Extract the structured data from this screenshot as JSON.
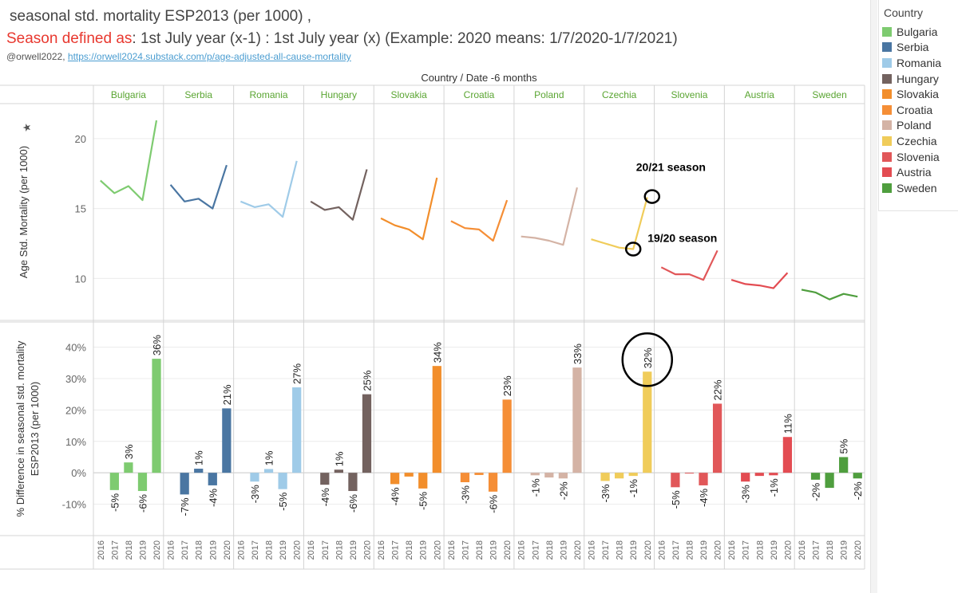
{
  "header": {
    "title_line1": "seasonal std. mortality ESP2013  (per 1000) ,",
    "title_line2_red": "Season defined as",
    "title_line2_rest": ": 1st July year (x-1) : 1st July  year (x) (Example: 2020 means: 1/7/2020-1/7/2021)",
    "handle": "@orwell2022,",
    "link": "https://orwell2024.substack.com/p/age-adjusted-all-cause-mortality"
  },
  "legend": {
    "title": "Country",
    "items": [
      {
        "label": "Bulgaria",
        "color": "#7ecb70"
      },
      {
        "label": "Serbia",
        "color": "#4a76a2"
      },
      {
        "label": "Romania",
        "color": "#9fcbe8"
      },
      {
        "label": "Hungary",
        "color": "#73625f"
      },
      {
        "label": "Slovakia",
        "color": "#f28e2b"
      },
      {
        "label": "Croatia",
        "color": "#f58e36"
      },
      {
        "label": "Poland",
        "color": "#d4b3a5"
      },
      {
        "label": "Czechia",
        "color": "#f0cc5a"
      },
      {
        "label": "Slovenia",
        "color": "#e15759"
      },
      {
        "label": "Austria",
        "color": "#e34c52"
      },
      {
        "label": "Sweden",
        "color": "#4f9e3e"
      }
    ]
  },
  "chart_data": {
    "type": "line",
    "column_header": "Country  /  Date -6 months",
    "countries": [
      "Bulgaria",
      "Serbia",
      "Romania",
      "Hungary",
      "Slovakia",
      "Croatia",
      "Poland",
      "Czechia",
      "Slovenia",
      "Austria",
      "Sweden"
    ],
    "colors": [
      "#7ecb70",
      "#4a76a2",
      "#9fcbe8",
      "#73625f",
      "#f28e2b",
      "#f58e36",
      "#d4b3a5",
      "#f0cc5a",
      "#e15759",
      "#e34c52",
      "#4f9e3e"
    ],
    "years": [
      "2016",
      "2017",
      "2018",
      "2019",
      "2020"
    ],
    "top_panel": {
      "ylabel": "Age Std. Mortality (per 1000)",
      "yticks": [
        10,
        15,
        20
      ],
      "ylim": [
        7,
        22.5
      ],
      "series": [
        {
          "name": "Bulgaria",
          "values": [
            17.0,
            16.1,
            16.6,
            15.6,
            21.3
          ]
        },
        {
          "name": "Serbia",
          "values": [
            16.7,
            15.5,
            15.7,
            15.0,
            18.1
          ]
        },
        {
          "name": "Romania",
          "values": [
            15.5,
            15.1,
            15.3,
            14.4,
            18.4
          ]
        },
        {
          "name": "Hungary",
          "values": [
            15.5,
            14.9,
            15.1,
            14.2,
            17.8
          ]
        },
        {
          "name": "Slovakia",
          "values": [
            14.3,
            13.8,
            13.5,
            12.8,
            17.2
          ]
        },
        {
          "name": "Croatia",
          "values": [
            14.1,
            13.6,
            13.5,
            12.7,
            15.6
          ]
        },
        {
          "name": "Poland",
          "values": [
            13.0,
            12.9,
            12.7,
            12.4,
            16.5
          ]
        },
        {
          "name": "Czechia",
          "values": [
            12.8,
            12.5,
            12.2,
            12.1,
            15.8
          ]
        },
        {
          "name": "Slovenia",
          "values": [
            10.8,
            10.3,
            10.3,
            9.9,
            12.0
          ]
        },
        {
          "name": "Austria",
          "values": [
            9.9,
            9.6,
            9.5,
            9.3,
            10.4
          ]
        },
        {
          "name": "Sweden",
          "values": [
            9.2,
            9.0,
            8.5,
            8.9,
            8.7
          ]
        }
      ],
      "annotations": [
        {
          "text": "20/21 season",
          "country": "Czechia",
          "year": "2020"
        },
        {
          "text": "19/20 season",
          "country": "Czechia",
          "year": "2019"
        }
      ]
    },
    "bottom_panel": {
      "ylabel_line1": "% Difference in seasonal std. mortality",
      "ylabel_line2": "ESP2013  (per 1000)",
      "yticks": [
        -10,
        0,
        10,
        20,
        30,
        40
      ],
      "ytick_labels": [
        "-10%",
        "0%",
        "10%",
        "20%",
        "30%",
        "40%"
      ],
      "ylim": [
        -20,
        48
      ],
      "series": [
        {
          "name": "Bulgaria",
          "values": [
            -5.5,
            3.3,
            -5.8,
            36.3
          ],
          "labels": [
            "-5%",
            "3%",
            "-6%",
            "36%"
          ]
        },
        {
          "name": "Serbia",
          "values": [
            -6.9,
            1.3,
            -4.0,
            20.5
          ],
          "labels": [
            "-7%",
            "1%",
            "-4%",
            "21%"
          ]
        },
        {
          "name": "Romania",
          "values": [
            -2.8,
            1.2,
            -5.2,
            27.2
          ],
          "labels": [
            "-3%",
            "1%",
            "-5%",
            "27%"
          ]
        },
        {
          "name": "Hungary",
          "values": [
            -3.8,
            1.0,
            -5.8,
            25.0
          ],
          "labels": [
            "-4%",
            "1%",
            "-6%",
            "25%"
          ]
        },
        {
          "name": "Slovakia",
          "values": [
            -3.6,
            -1.2,
            -5.0,
            34.0
          ],
          "labels": [
            "-4%",
            "",
            "-5%",
            "34%"
          ]
        },
        {
          "name": "Croatia",
          "values": [
            -3.0,
            -0.7,
            -6.0,
            23.3
          ],
          "labels": [
            "-3%",
            "",
            "-6%",
            "23%"
          ]
        },
        {
          "name": "Poland",
          "values": [
            -0.8,
            -1.5,
            -1.8,
            33.5
          ],
          "labels": [
            "-1%",
            "",
            "-2%",
            "33%"
          ]
        },
        {
          "name": "Czechia",
          "values": [
            -2.6,
            -1.8,
            -1.0,
            32.2
          ],
          "labels": [
            "-3%",
            "",
            "-1%",
            "32%"
          ]
        },
        {
          "name": "Slovenia",
          "values": [
            -4.6,
            -0.2,
            -4.0,
            22.0
          ],
          "labels": [
            "-5%",
            "",
            "-4%",
            "22%"
          ]
        },
        {
          "name": "Austria",
          "values": [
            -2.8,
            -1.0,
            -0.8,
            11.4
          ],
          "labels": [
            "-3%",
            "",
            "-1%",
            "11%"
          ]
        },
        {
          "name": "Sweden",
          "values": [
            -2.2,
            -4.8,
            5.0,
            -1.8
          ],
          "labels": [
            "-2%",
            "",
            "5%",
            "-2%"
          ]
        }
      ]
    }
  }
}
